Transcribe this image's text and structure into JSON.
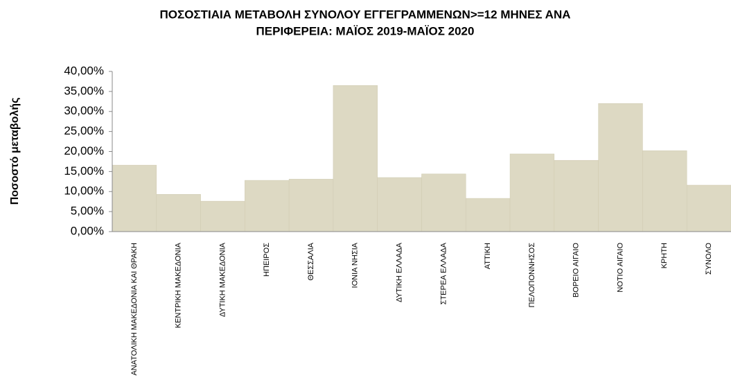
{
  "chart_data": {
    "type": "bar",
    "title": [
      "ΠΟΣΟΣΤΙΑΙΑ ΜΕΤΑΒΟΛΗ  ΣΥΝΟΛΟΥ ΕΓΓΕΓΡΑΜΜΕΝΩΝ>=12 ΜΗΝΕΣ ΑΝΑ",
      "ΠΕΡΙΦΕΡΕΙΑ: ΜΑΪΟΣ 2019-ΜΑΪΟΣ  2020"
    ],
    "y_axis_label": "Ποσοστό μεταβολής",
    "categories": [
      "ΑΝΑΤΟΛΙΚΗ ΜΑΚΕΔΟΝΙΑ ΚΑΙ ΘΡΑΚΗ",
      "ΚΕΝΤΡΙΚΗ ΜΑΚΕΔΟΝΙΑ",
      "ΔΥΤΙΚΗ ΜΑΚΕΔΟΝΙΑ",
      "ΗΠΕΙΡΟΣ",
      "ΘΕΣΣΑΛΙΑ",
      "ΙΟΝΙΑ ΝΗΣΙΑ",
      "ΔΥΤΙΚΗ ΕΛΛΑΔΑ",
      "ΣΤΕΡΕΑ ΕΛΛΑΔΑ",
      "ΑΤΤΙΚΗ",
      "ΠΕΛΟΠΟΝΝΗΣΟΣ",
      "ΒΟΡΕΙΟ ΑΙΓΑΙΟ",
      "ΝΟΤΙΟ ΑΙΓΑΙΟ",
      "ΚΡΗΤΗ",
      "ΣΥΝΟΛΟ"
    ],
    "values": [
      16.6,
      9.3,
      7.6,
      12.8,
      13.1,
      36.5,
      13.5,
      14.4,
      8.3,
      19.4,
      17.8,
      32.0,
      20.2,
      11.6
    ],
    "color": "#ddd9c3",
    "ylim": [
      0,
      40
    ],
    "yticks": [
      {
        "value": 0,
        "label": "0,00%"
      },
      {
        "value": 5,
        "label": "5,00%"
      },
      {
        "value": 10,
        "label": "10,00%"
      },
      {
        "value": 15,
        "label": "15,00%"
      },
      {
        "value": 20,
        "label": "20,00%"
      },
      {
        "value": 25,
        "label": "25,00%"
      },
      {
        "value": 30,
        "label": "30,00%"
      },
      {
        "value": 35,
        "label": "35,00%"
      },
      {
        "value": 40,
        "label": "40,00%"
      }
    ]
  }
}
